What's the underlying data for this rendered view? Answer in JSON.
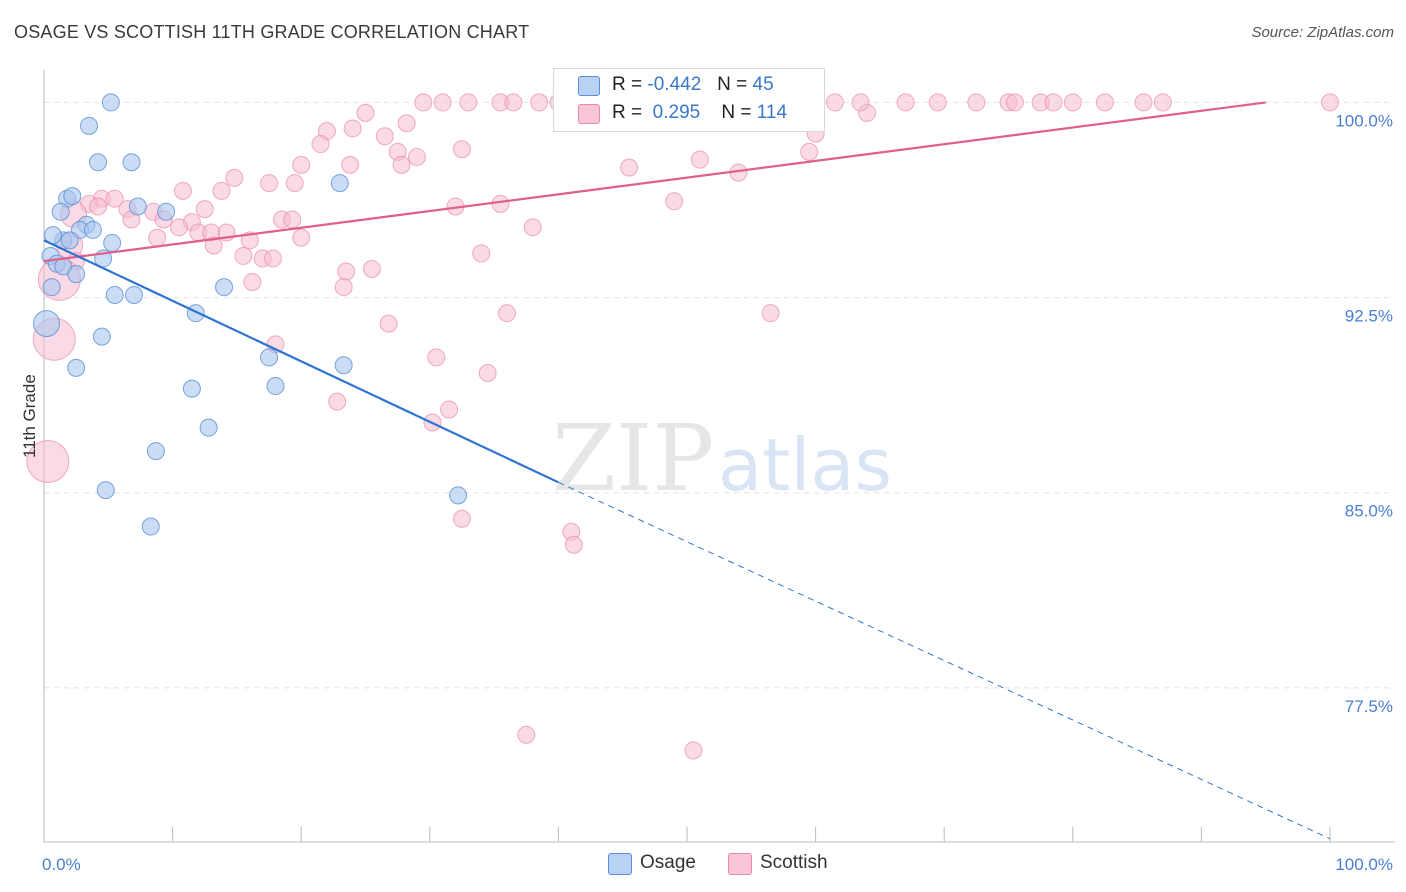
{
  "title": "OSAGE VS SCOTTISH 11TH GRADE CORRELATION CHART",
  "source": "Source: ZipAtlas.com",
  "watermark": {
    "zip": "ZIP",
    "atlas": "atlas"
  },
  "legend": {
    "rows": [
      {
        "r_label": "R =",
        "r_value": "-0.442",
        "n_label": "N =",
        "n_value": "45"
      },
      {
        "r_label": "R =",
        "r_value": "0.295",
        "n_label": "N =",
        "n_value": "114"
      }
    ]
  },
  "bottom_legend": [
    "Osage",
    "Scottish"
  ],
  "colors": {
    "osage_fill": "#a9c6ef",
    "osage_stroke": "#5b8fd6",
    "osage_line": "#2f74d0",
    "scottish_fill": "#f6bcd0",
    "scottish_stroke": "#e98aac",
    "scottish_line": "#e0608a",
    "tick_label": "#4a7fd0",
    "grid": "#e2e2e2"
  },
  "chart_data": {
    "type": "scatter",
    "title": "OSAGE VS SCOTTISH 11TH GRADE CORRELATION CHART",
    "xlabel": "",
    "ylabel": "11th Grade",
    "xlim": [
      0,
      100
    ],
    "ylim": [
      71.5,
      100.9
    ],
    "x_tick_labels": [
      "0.0%",
      "100.0%"
    ],
    "y_ticks": [
      100,
      92.5,
      85,
      77.5
    ],
    "y_tick_labels": [
      "100.0%",
      "92.5%",
      "85.0%",
      "77.5%"
    ],
    "grid": true,
    "legend_placement": "top-center",
    "series": [
      {
        "name": "Osage",
        "r": -0.442,
        "n": 45,
        "trend": {
          "x0": 0,
          "y0": 94.7,
          "x1": 40,
          "y1": 85.4,
          "dashed_to_x": 100,
          "dashed_to_y": 71.7
        },
        "points": [
          {
            "x": 5.2,
            "y": 100.0,
            "s": 1
          },
          {
            "x": 3.5,
            "y": 99.1,
            "s": 1
          },
          {
            "x": 4.2,
            "y": 97.7,
            "s": 1
          },
          {
            "x": 6.8,
            "y": 97.7,
            "s": 1
          },
          {
            "x": 1.8,
            "y": 96.3,
            "s": 1
          },
          {
            "x": 2.2,
            "y": 96.4,
            "s": 1
          },
          {
            "x": 7.3,
            "y": 96.0,
            "s": 1
          },
          {
            "x": 1.3,
            "y": 95.8,
            "s": 1
          },
          {
            "x": 9.5,
            "y": 95.8,
            "s": 1
          },
          {
            "x": 3.3,
            "y": 95.3,
            "s": 1
          },
          {
            "x": 2.8,
            "y": 95.1,
            "s": 1
          },
          {
            "x": 3.8,
            "y": 95.1,
            "s": 1
          },
          {
            "x": 1.5,
            "y": 94.7,
            "s": 1
          },
          {
            "x": 2.0,
            "y": 94.7,
            "s": 1
          },
          {
            "x": 5.3,
            "y": 94.6,
            "s": 1
          },
          {
            "x": 0.7,
            "y": 94.9,
            "s": 1
          },
          {
            "x": 4.6,
            "y": 94.0,
            "s": 1
          },
          {
            "x": 0.5,
            "y": 94.1,
            "s": 1
          },
          {
            "x": 1.0,
            "y": 93.8,
            "s": 1
          },
          {
            "x": 1.5,
            "y": 93.7,
            "s": 1
          },
          {
            "x": 2.5,
            "y": 93.4,
            "s": 1
          },
          {
            "x": 0.6,
            "y": 92.9,
            "s": 1
          },
          {
            "x": 5.5,
            "y": 92.6,
            "s": 1
          },
          {
            "x": 7.0,
            "y": 92.6,
            "s": 1
          },
          {
            "x": 14.0,
            "y": 92.9,
            "s": 1
          },
          {
            "x": 23.0,
            "y": 96.9,
            "s": 1
          },
          {
            "x": 11.8,
            "y": 91.9,
            "s": 1
          },
          {
            "x": 0.2,
            "y": 91.5,
            "s": 2
          },
          {
            "x": 4.5,
            "y": 91.0,
            "s": 1
          },
          {
            "x": 2.5,
            "y": 89.8,
            "s": 1
          },
          {
            "x": 17.5,
            "y": 90.2,
            "s": 1
          },
          {
            "x": 23.3,
            "y": 89.9,
            "s": 1
          },
          {
            "x": 11.5,
            "y": 89.0,
            "s": 1
          },
          {
            "x": 18.0,
            "y": 89.1,
            "s": 1
          },
          {
            "x": 12.8,
            "y": 87.5,
            "s": 1
          },
          {
            "x": 8.7,
            "y": 86.6,
            "s": 1
          },
          {
            "x": 4.8,
            "y": 85.1,
            "s": 1
          },
          {
            "x": 32.2,
            "y": 84.9,
            "s": 1
          },
          {
            "x": 8.3,
            "y": 83.7,
            "s": 1
          }
        ]
      },
      {
        "name": "Scottish",
        "r": 0.295,
        "n": 114,
        "trend": {
          "x0": 0,
          "y0": 93.9,
          "x1": 95,
          "y1": 100.0
        },
        "points": [
          {
            "x": 25.0,
            "y": 99.6,
            "s": 1
          },
          {
            "x": 28.2,
            "y": 99.2,
            "s": 1
          },
          {
            "x": 22.0,
            "y": 98.9,
            "s": 1
          },
          {
            "x": 24.0,
            "y": 99.0,
            "s": 1
          },
          {
            "x": 26.5,
            "y": 98.7,
            "s": 1
          },
          {
            "x": 21.5,
            "y": 98.4,
            "s": 1
          },
          {
            "x": 27.5,
            "y": 98.1,
            "s": 1
          },
          {
            "x": 29.0,
            "y": 97.9,
            "s": 1
          },
          {
            "x": 32.5,
            "y": 98.2,
            "s": 1
          },
          {
            "x": 20.0,
            "y": 97.6,
            "s": 1
          },
          {
            "x": 23.8,
            "y": 97.6,
            "s": 1
          },
          {
            "x": 27.8,
            "y": 97.6,
            "s": 1
          },
          {
            "x": 14.8,
            "y": 97.1,
            "s": 1
          },
          {
            "x": 17.5,
            "y": 96.9,
            "s": 1
          },
          {
            "x": 19.5,
            "y": 96.9,
            "s": 1
          },
          {
            "x": 10.8,
            "y": 96.6,
            "s": 1
          },
          {
            "x": 13.8,
            "y": 96.6,
            "s": 1
          },
          {
            "x": 4.5,
            "y": 96.3,
            "s": 1
          },
          {
            "x": 5.5,
            "y": 96.3,
            "s": 1
          },
          {
            "x": 3.5,
            "y": 96.1,
            "s": 1
          },
          {
            "x": 4.2,
            "y": 96.0,
            "s": 1
          },
          {
            "x": 6.5,
            "y": 95.9,
            "s": 1
          },
          {
            "x": 8.5,
            "y": 95.8,
            "s": 1
          },
          {
            "x": 12.5,
            "y": 95.9,
            "s": 1
          },
          {
            "x": 2.3,
            "y": 95.7,
            "s": 2
          },
          {
            "x": 9.3,
            "y": 95.5,
            "s": 1
          },
          {
            "x": 11.5,
            "y": 95.4,
            "s": 1
          },
          {
            "x": 18.5,
            "y": 95.5,
            "s": 1
          },
          {
            "x": 19.3,
            "y": 95.5,
            "s": 1
          },
          {
            "x": 6.8,
            "y": 95.5,
            "s": 1
          },
          {
            "x": 10.5,
            "y": 95.2,
            "s": 1
          },
          {
            "x": 12.0,
            "y": 95.0,
            "s": 1
          },
          {
            "x": 13.0,
            "y": 95.0,
            "s": 1
          },
          {
            "x": 14.2,
            "y": 95.0,
            "s": 1
          },
          {
            "x": 20.0,
            "y": 94.8,
            "s": 1
          },
          {
            "x": 16.0,
            "y": 94.7,
            "s": 1
          },
          {
            "x": 8.8,
            "y": 94.8,
            "s": 1
          },
          {
            "x": 2.0,
            "y": 94.5,
            "s": 2
          },
          {
            "x": 13.2,
            "y": 94.5,
            "s": 1
          },
          {
            "x": 15.5,
            "y": 94.1,
            "s": 1
          },
          {
            "x": 17.0,
            "y": 94.0,
            "s": 1
          },
          {
            "x": 17.8,
            "y": 94.0,
            "s": 1
          },
          {
            "x": 2.5,
            "y": 93.9,
            "s": 1
          },
          {
            "x": 1.2,
            "y": 93.2,
            "s": 3
          },
          {
            "x": 23.5,
            "y": 93.5,
            "s": 1
          },
          {
            "x": 25.5,
            "y": 93.6,
            "s": 1
          },
          {
            "x": 16.2,
            "y": 93.1,
            "s": 1
          },
          {
            "x": 23.3,
            "y": 92.9,
            "s": 1
          },
          {
            "x": 34.0,
            "y": 94.2,
            "s": 1
          },
          {
            "x": 32.0,
            "y": 96.0,
            "s": 1
          },
          {
            "x": 35.5,
            "y": 96.1,
            "s": 1
          },
          {
            "x": 38.0,
            "y": 95.2,
            "s": 1
          },
          {
            "x": 36.0,
            "y": 91.9,
            "s": 1
          },
          {
            "x": 26.8,
            "y": 91.5,
            "s": 1
          },
          {
            "x": 18.0,
            "y": 90.7,
            "s": 1
          },
          {
            "x": 30.5,
            "y": 90.2,
            "s": 1
          },
          {
            "x": 34.5,
            "y": 89.6,
            "s": 1
          },
          {
            "x": 22.8,
            "y": 88.5,
            "s": 1
          },
          {
            "x": 31.5,
            "y": 88.2,
            "s": 1
          },
          {
            "x": 30.2,
            "y": 87.7,
            "s": 1
          },
          {
            "x": 32.5,
            "y": 84.0,
            "s": 1
          },
          {
            "x": 41.0,
            "y": 83.5,
            "s": 1
          },
          {
            "x": 41.2,
            "y": 83.0,
            "s": 1
          },
          {
            "x": 0.8,
            "y": 90.9,
            "s": 3
          },
          {
            "x": 0.3,
            "y": 86.2,
            "s": 3
          },
          {
            "x": 37.5,
            "y": 75.7,
            "s": 1
          },
          {
            "x": 50.5,
            "y": 75.1,
            "s": 1
          },
          {
            "x": 56.5,
            "y": 91.9,
            "s": 1
          },
          {
            "x": 49.0,
            "y": 96.2,
            "s": 1
          },
          {
            "x": 45.5,
            "y": 97.5,
            "s": 1
          },
          {
            "x": 51.0,
            "y": 97.8,
            "s": 1
          },
          {
            "x": 54.0,
            "y": 97.3,
            "s": 1
          },
          {
            "x": 59.5,
            "y": 98.1,
            "s": 1
          },
          {
            "x": 60.0,
            "y": 98.8,
            "s": 1
          },
          {
            "x": 64.0,
            "y": 99.6,
            "s": 1
          },
          {
            "x": 29.5,
            "y": 100.0,
            "s": 1
          },
          {
            "x": 31.0,
            "y": 100.0,
            "s": 1
          },
          {
            "x": 33.0,
            "y": 100.0,
            "s": 1
          },
          {
            "x": 35.5,
            "y": 100.0,
            "s": 1
          },
          {
            "x": 36.5,
            "y": 100.0,
            "s": 1
          },
          {
            "x": 38.5,
            "y": 100.0,
            "s": 1
          },
          {
            "x": 40.0,
            "y": 100.0,
            "s": 1
          },
          {
            "x": 41.0,
            "y": 100.0,
            "s": 1
          },
          {
            "x": 43.5,
            "y": 100.0,
            "s": 1
          },
          {
            "x": 47.0,
            "y": 100.0,
            "s": 1
          },
          {
            "x": 49.5,
            "y": 100.0,
            "s": 1
          },
          {
            "x": 52.5,
            "y": 100.0,
            "s": 1
          },
          {
            "x": 54.5,
            "y": 100.0,
            "s": 1
          },
          {
            "x": 57.0,
            "y": 100.0,
            "s": 1
          },
          {
            "x": 59.5,
            "y": 100.0,
            "s": 1
          },
          {
            "x": 61.5,
            "y": 100.0,
            "s": 1
          },
          {
            "x": 63.5,
            "y": 100.0,
            "s": 1
          },
          {
            "x": 67.0,
            "y": 100.0,
            "s": 1
          },
          {
            "x": 69.5,
            "y": 100.0,
            "s": 1
          },
          {
            "x": 72.5,
            "y": 100.0,
            "s": 1
          },
          {
            "x": 75.0,
            "y": 100.0,
            "s": 1
          },
          {
            "x": 75.5,
            "y": 100.0,
            "s": 1
          },
          {
            "x": 77.5,
            "y": 100.0,
            "s": 1
          },
          {
            "x": 78.5,
            "y": 100.0,
            "s": 1
          },
          {
            "x": 80.0,
            "y": 100.0,
            "s": 1
          },
          {
            "x": 82.5,
            "y": 100.0,
            "s": 1
          },
          {
            "x": 85.5,
            "y": 100.0,
            "s": 1
          },
          {
            "x": 87.0,
            "y": 100.0,
            "s": 1
          },
          {
            "x": 100.0,
            "y": 100.0,
            "s": 1
          }
        ]
      }
    ]
  }
}
